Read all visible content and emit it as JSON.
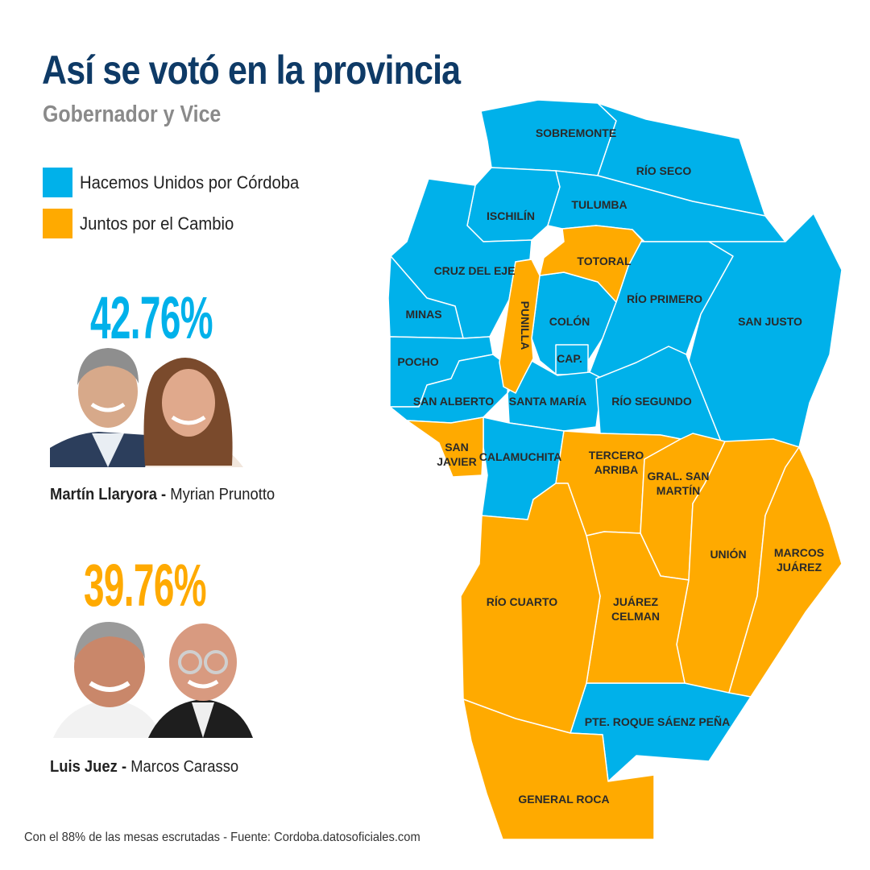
{
  "header": {
    "title": "Así se votó en la provincia",
    "subtitle": "Gobernador y Vice"
  },
  "legend": {
    "items": [
      {
        "label": "Hacemos Unidos por Córdoba",
        "color": "#00b1ea"
      },
      {
        "label": "Juntos por el Cambio",
        "color": "#ffaa00"
      }
    ]
  },
  "candidates": [
    {
      "percentage": "42.76%",
      "color": "#00b1ea",
      "governor": "Martín Llaryora",
      "separator": " - ",
      "vice": "Myrian Prunotto"
    },
    {
      "percentage": "39.76%",
      "color": "#ffaa00",
      "governor": "Luis Juez",
      "separator": " - ",
      "vice": "Marcos Carasso"
    }
  ],
  "map": {
    "departments": [
      {
        "name": "SOBREMONTE",
        "winner": "Hacemos Unidos por Córdoba"
      },
      {
        "name": "RÍO SECO",
        "winner": "Hacemos Unidos por Córdoba"
      },
      {
        "name": "ISCHILÍN",
        "winner": "Hacemos Unidos por Córdoba"
      },
      {
        "name": "TULUMBA",
        "winner": "Hacemos Unidos por Córdoba"
      },
      {
        "name": "TOTORAL",
        "winner": "Juntos por el Cambio"
      },
      {
        "name": "CRUZ DEL EJE",
        "winner": "Hacemos Unidos por Córdoba"
      },
      {
        "name": "PUNILLA",
        "winner": "Juntos por el Cambio"
      },
      {
        "name": "MINAS",
        "winner": "Hacemos Unidos por Córdoba"
      },
      {
        "name": "COLÓN",
        "winner": "Hacemos Unidos por Córdoba"
      },
      {
        "name": "RÍO PRIMERO",
        "winner": "Hacemos Unidos por Córdoba"
      },
      {
        "name": "SAN JUSTO",
        "winner": "Hacemos Unidos por Córdoba"
      },
      {
        "name": "POCHO",
        "winner": "Hacemos Unidos por Córdoba"
      },
      {
        "name": "CAP.",
        "winner": "Hacemos Unidos por Córdoba"
      },
      {
        "name": "SAN ALBERTO",
        "winner": "Hacemos Unidos por Córdoba"
      },
      {
        "name": "SANTA MARÍA",
        "winner": "Hacemos Unidos por Córdoba"
      },
      {
        "name": "RÍO SEGUNDO",
        "winner": "Hacemos Unidos por Córdoba"
      },
      {
        "name": "SAN JAVIER",
        "winner": "Juntos por el Cambio"
      },
      {
        "name": "CALAMUCHITA",
        "winner": "Hacemos Unidos por Córdoba"
      },
      {
        "name": "TERCERO ARRIBA",
        "winner": "Juntos por el Cambio"
      },
      {
        "name": "GRAL. SAN MARTÍN",
        "winner": "Juntos por el Cambio"
      },
      {
        "name": "UNIÓN",
        "winner": "Juntos por el Cambio"
      },
      {
        "name": "MARCOS JUÁREZ",
        "winner": "Juntos por el Cambio"
      },
      {
        "name": "RÍO CUARTO",
        "winner": "Juntos por el Cambio"
      },
      {
        "name": "JUÁREZ CELMAN",
        "winner": "Juntos por el Cambio"
      },
      {
        "name": "PTE. ROQUE SÁENZ PEÑA",
        "winner": "Hacemos Unidos por Córdoba"
      },
      {
        "name": "GENERAL ROCA",
        "winner": "Juntos por el Cambio"
      }
    ]
  },
  "footer": "Con el 88% de las mesas escrutadas  - Fuente: Cordoba.datosoficiales.com"
}
